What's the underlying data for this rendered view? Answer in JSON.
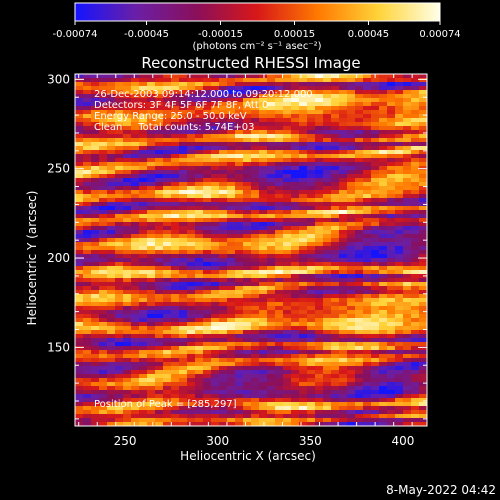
{
  "chart_data": {
    "type": "heatmap",
    "title": "Reconstructed RHESSI Image",
    "xlabel": "Heliocentric X (arcsec)",
    "ylabel": "Heliocentric Y (arcsec)",
    "xlim": [
      223,
      413
    ],
    "ylim": [
      106,
      303
    ],
    "x_ticks": [
      250,
      300,
      350,
      400
    ],
    "y_ticks": [
      150,
      200,
      250,
      300
    ],
    "colorbar": {
      "range": [
        -0.00074,
        0.00074
      ],
      "tick_values": [
        -0.00074,
        -0.00045,
        -0.00015,
        0.00015,
        0.00045,
        0.00074
      ],
      "tick_labels": [
        "-0.00074",
        "-0.00045",
        "-0.00015",
        "0.00015",
        "0.00045",
        "0.00074"
      ],
      "units_label": "(photons cm⁻² s⁻¹ asec⁻²)",
      "colormap": [
        "#1414ff",
        "#6a1fa6",
        "#8a0f5a",
        "#d81818",
        "#ff7a00",
        "#ffd43a",
        "#ffffe8"
      ]
    },
    "annotations": [
      "26-Dec-2003 09:14:12.000 to 09:20:12.000",
      "Detectors: 3F 4F 5F 6F 7F 8F, Att 0",
      "Energy Range: 25.0 - 50.0 keV",
      "Clean     Total counts: 5.74E+03"
    ],
    "peak_label": "Position of Peak = [285,297]",
    "peak": {
      "x": 285,
      "y": 297
    },
    "date_stamp": "8-May-2022 04:42"
  }
}
